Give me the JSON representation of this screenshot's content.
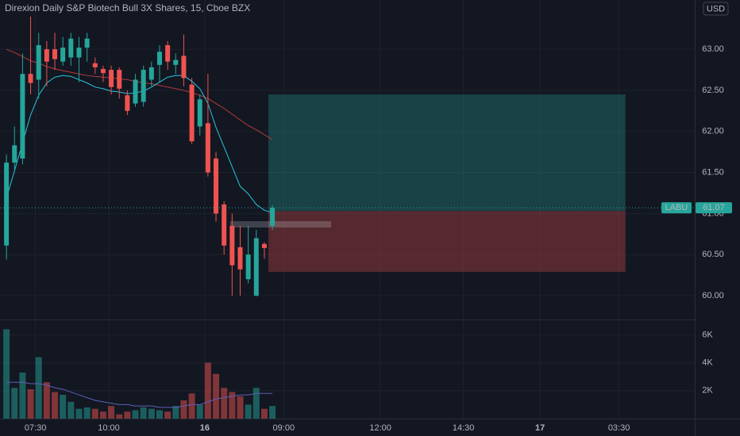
{
  "chart_data": {
    "type": "candlestick",
    "title": "Direxion Daily S&P Biotech Bull 3X Shares, 15, Cboe BZX",
    "currency": "USD",
    "ticker": "LABU",
    "up_color": "#26a69a",
    "down_color": "#ef5350",
    "open": [
      60.61,
      61.62,
      61.67,
      62.7,
      62.63,
      63.0,
      63.0,
      62.85,
      62.9,
      62.9,
      63.02,
      62.83,
      62.76,
      62.75,
      62.75,
      62.44,
      62.34,
      62.36,
      62.63,
      62.81,
      63.05,
      62.81,
      62.92,
      62.57,
      62.06,
      62.1,
      61.67,
      61.11,
      60.85,
      60.59,
      60.2,
      60.0,
      60.63,
      60.85
    ],
    "high": [
      61.72,
      62.06,
      62.95,
      63.4,
      63.2,
      63.1,
      63.2,
      63.15,
      63.2,
      63.15,
      63.2,
      62.9,
      62.8,
      62.8,
      62.78,
      62.5,
      62.7,
      62.8,
      62.85,
      63.05,
      63.1,
      62.95,
      63.18,
      62.65,
      62.45,
      62.7,
      61.75,
      61.15,
      61.0,
      60.85,
      60.85,
      60.8,
      60.65,
      61.1
    ],
    "low": [
      60.44,
      61.53,
      61.6,
      62.45,
      62.4,
      62.55,
      62.75,
      62.8,
      62.8,
      62.6,
      62.85,
      62.7,
      62.6,
      62.45,
      62.4,
      62.2,
      62.3,
      62.3,
      62.55,
      62.6,
      62.75,
      62.7,
      62.55,
      61.85,
      61.95,
      61.45,
      60.9,
      60.5,
      60.0,
      60.0,
      60.15,
      59.99,
      60.45,
      60.8
    ],
    "close": [
      61.62,
      61.83,
      62.7,
      62.59,
      63.05,
      62.85,
      62.88,
      63.02,
      63.13,
      63.02,
      63.13,
      62.78,
      62.71,
      62.54,
      62.52,
      62.25,
      62.63,
      62.75,
      62.78,
      62.97,
      62.85,
      62.87,
      62.65,
      61.88,
      62.39,
      61.5,
      61.0,
      60.61,
      60.37,
      60.32,
      60.5,
      60.7,
      60.58,
      61.07
    ],
    "volume": [
      6400,
      2200,
      3300,
      2100,
      4400,
      2600,
      1900,
      1700,
      1200,
      700,
      800,
      700,
      500,
      900,
      300,
      500,
      600,
      800,
      700,
      600,
      500,
      900,
      1300,
      1800,
      1000,
      4000,
      3200,
      2200,
      1900,
      1600,
      1000,
      2200,
      700,
      900
    ],
    "ma_fast": {
      "color": "#26c6da",
      "values": [
        61.19,
        61.52,
        61.86,
        62.2,
        62.44,
        62.59,
        62.66,
        62.68,
        62.67,
        62.63,
        62.59,
        62.54,
        62.52,
        62.49,
        62.48,
        62.46,
        62.47,
        62.49,
        62.54,
        62.6,
        62.66,
        62.68,
        62.68,
        62.61,
        62.52,
        62.34,
        62.05,
        61.81,
        61.57,
        61.33,
        61.24,
        61.11,
        61.04,
        61.01
      ]
    },
    "ma_slow": {
      "color": "#b53a3a",
      "values": [
        63.0,
        62.96,
        62.91,
        62.86,
        62.83,
        62.79,
        62.76,
        62.74,
        62.72,
        62.7,
        62.68,
        62.67,
        62.66,
        62.65,
        62.64,
        62.63,
        62.61,
        62.59,
        62.58,
        62.56,
        62.54,
        62.52,
        62.5,
        62.47,
        62.44,
        62.4,
        62.34,
        62.28,
        62.21,
        62.14,
        62.07,
        62.02,
        61.96,
        61.9
      ]
    },
    "volume_ma": {
      "color": "#5d5fb8",
      "values": [
        2600,
        2600,
        2600,
        2500,
        2500,
        2400,
        2200,
        2100,
        1900,
        1700,
        1500,
        1300,
        1200,
        1100,
        1000,
        1000,
        900,
        900,
        900,
        800,
        800,
        800,
        900,
        1000,
        1000,
        1200,
        1400,
        1500,
        1600,
        1700,
        1700,
        1800,
        1800,
        1800
      ]
    },
    "position": {
      "target": 62.45,
      "entry": 61.03,
      "stop": 60.29,
      "start": 32.5,
      "end": 76.8
    },
    "xlim": [
      -0.8,
      85.4
    ],
    "xticks": [
      {
        "value": 3.6,
        "label": "07:30"
      },
      {
        "value": 12.7,
        "label": "10:00"
      },
      {
        "value": 24.6,
        "label": "16"
      },
      {
        "value": 34.4,
        "label": "09:00"
      },
      {
        "value": 46.4,
        "label": "12:00"
      },
      {
        "value": 56.7,
        "label": "14:30"
      },
      {
        "value": 66.2,
        "label": "17"
      },
      {
        "value": 76,
        "label": "03:30"
      }
    ],
    "ylim": [
      59.71,
      63.6
    ],
    "yticks": [
      {
        "value": 60,
        "label": "60.00"
      },
      {
        "value": 60.5,
        "label": "60.50"
      },
      {
        "value": 61,
        "label": "61.00"
      },
      {
        "value": 61.5,
        "label": "61.50"
      },
      {
        "value": 62,
        "label": "62.00"
      },
      {
        "value": 62.5,
        "label": "62.50"
      },
      {
        "value": 63,
        "label": "63.00"
      }
    ],
    "volume_ylim": [
      0,
      7100
    ],
    "volume_ticks": [
      {
        "value": 2000,
        "label": "2K"
      },
      {
        "value": 4000,
        "label": "4K"
      },
      {
        "value": 6000,
        "label": "6K"
      }
    ],
    "grid": true
  }
}
